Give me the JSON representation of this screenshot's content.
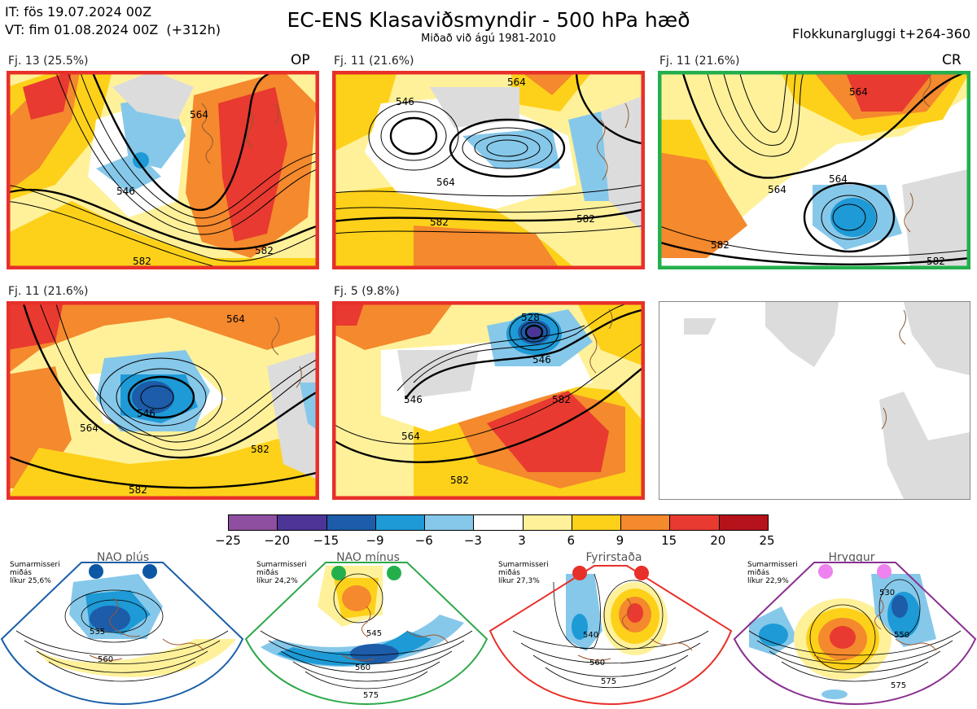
{
  "header": {
    "it_line": "IT: fös 19.07.2024 00Z",
    "vt_line": "VT: fim 01.08.2024 00Z  (+312h)",
    "title": "EC-ENS Klasaviðsmyndir - 500 hPa hæð",
    "subtitle": "Miðað við ágú 1981-2010",
    "window": "Flokkunargluggi t+264-360"
  },
  "panels": [
    {
      "label": "Fj. 13 (25.5%)",
      "tag": "OP",
      "frame": "#e8302a",
      "contours": [
        "546",
        "564",
        "582",
        "582"
      ]
    },
    {
      "label": "Fj. 11 (21.6%)",
      "tag": "",
      "frame": "#e8302a",
      "contours": [
        "546",
        "564",
        "564",
        "582",
        "582"
      ]
    },
    {
      "label": "Fj. 11 (21.6%)",
      "tag": "CR",
      "frame": "#23b04c",
      "contours": [
        "564",
        "564",
        "564",
        "582",
        "582"
      ]
    },
    {
      "label": "Fj. 11 (21.6%)",
      "tag": "",
      "frame": "#e8302a",
      "contours": [
        "546",
        "564",
        "564",
        "582",
        "582"
      ]
    },
    {
      "label": "Fj. 5 (9.8%)",
      "tag": "",
      "frame": "#e8302a",
      "contours": [
        "528",
        "546",
        "546",
        "564",
        "582",
        "582"
      ]
    }
  ],
  "colorbar": {
    "ticks": [
      "−25",
      "−20",
      "−15",
      "−9",
      "−6",
      "−3",
      "3",
      "6",
      "9",
      "15",
      "20",
      "25"
    ],
    "colors": [
      "#8e4fa0",
      "#4c3596",
      "#1c5ca8",
      "#1e9ad6",
      "#86c8ea",
      "#ffffff",
      "#fff19a",
      "#fdd11a",
      "#f4892d",
      "#e83a30",
      "#b5121b"
    ]
  },
  "regimes": [
    {
      "name": "NAO plús",
      "note": "Sumarmisseri\nmiðás\nlíkur 25,6%",
      "border": "#1a5fa8",
      "dot": "#0b57a4",
      "contours": [
        "535",
        "560"
      ]
    },
    {
      "name": "NAO mínus",
      "note": "Sumarmisseri\nmiðás\nlíkur 24,2%",
      "border": "#2da84a",
      "dot": "#23b04c",
      "contours": [
        "545",
        "560",
        "575"
      ]
    },
    {
      "name": "Fyrirstaða",
      "note": "Sumarmisseri\nmiðás\nlíkur 27,3%",
      "border": "#e8302a",
      "dot": "#e8302a",
      "contours": [
        "540",
        "560",
        "575"
      ]
    },
    {
      "name": "Hryggur",
      "note": "Sumarmisseri\nmiðás\nlíkur 22,9%",
      "border": "#8a2f90",
      "dot": "#ee82ee",
      "contours": [
        "530",
        "550",
        "575"
      ]
    }
  ]
}
